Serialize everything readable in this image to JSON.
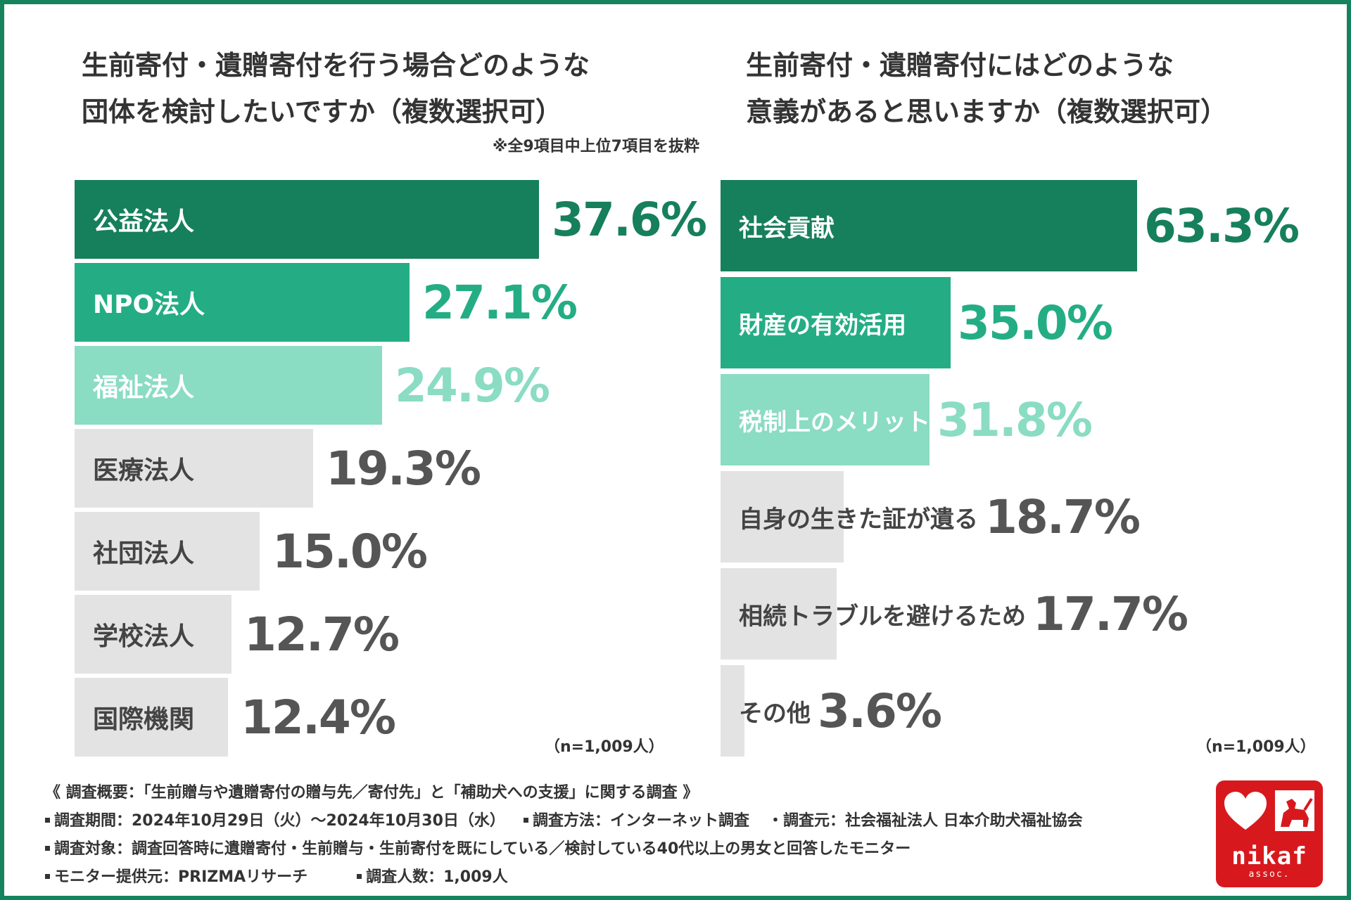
{
  "chart_data": [
    {
      "type": "bar",
      "orientation": "horizontal",
      "title_lines": [
        "生前寄付・遺贈寄付を行う場合どのような",
        "団体を検討したいですか（複数選択可）"
      ],
      "note": "※全9項目中上位7項目を抜粋",
      "categories": [
        "公益法人",
        "NPO法人",
        "福祉法人",
        "医療法人",
        "社団法人",
        "学校法人",
        "国際機関"
      ],
      "values": [
        37.6,
        27.1,
        24.9,
        19.3,
        15.0,
        12.7,
        12.4
      ],
      "value_labels": [
        "37.6%",
        "27.1%",
        "24.9%",
        "19.3%",
        "15.0%",
        "12.7%",
        "12.4%"
      ],
      "colors": [
        "#167f5c",
        "#24ad84",
        "#8adcc3",
        "#e3e3e3",
        "#e3e3e3",
        "#e3e3e3",
        "#e3e3e3"
      ],
      "label_colors": [
        "#ffffff",
        "#ffffff",
        "#ffffff",
        "#444444",
        "#444444",
        "#444444",
        "#444444"
      ],
      "value_colors": [
        "#167f5c",
        "#24ad84",
        "#8adcc3",
        "#555555",
        "#555555",
        "#555555",
        "#555555"
      ],
      "sample_note": "（n=1,009人）"
    },
    {
      "type": "bar",
      "orientation": "horizontal",
      "title_lines": [
        "生前寄付・遺贈寄付にはどのような",
        "意義があると思いますか（複数選択可）"
      ],
      "categories": [
        "社会貢献",
        "財産の有効活用",
        "税制上のメリット",
        "自身の生きた証が遺る",
        "相続トラブルを避けるため",
        "その他"
      ],
      "values": [
        63.3,
        35.0,
        31.8,
        18.7,
        17.7,
        3.6
      ],
      "value_labels": [
        "63.3%",
        "35.0%",
        "31.8%",
        "18.7%",
        "17.7%",
        "3.6%"
      ],
      "colors": [
        "#167f5c",
        "#24ad84",
        "#8adcc3",
        "#e3e3e3",
        "#e3e3e3",
        "#e3e3e3"
      ],
      "label_colors": [
        "#ffffff",
        "#ffffff",
        "#ffffff",
        "#444444",
        "#444444",
        "#444444"
      ],
      "value_colors": [
        "#167f5c",
        "#24ad84",
        "#8adcc3",
        "#555555",
        "#555555",
        "#555555"
      ],
      "sample_note": "（n=1,009人）"
    }
  ],
  "footer": {
    "heading": "《 調査概要：「生前贈与や遺贈寄付の贈与先／寄付先」と「補助犬への支援」に関する調査 》",
    "period": "調査期間：2024年10月29日（火）〜2024年10月30日（水）",
    "method": "調査方法：インターネット調査",
    "source": "・調査元：社会福祉法人 日本介助犬福祉協会",
    "target": "調査対象：調査回答時に遺贈寄付・生前贈与・生前寄付を既にしている／検討している40代以上の男女と回答したモニター",
    "provider": "モニター提供元：PRIZMAリサーチ",
    "respondents": "調査人数：1,009人"
  },
  "logo": {
    "word": "nikaf",
    "sub": "assoc."
  },
  "colors": {
    "frame": "#15835c",
    "logo": "#d7191e"
  }
}
